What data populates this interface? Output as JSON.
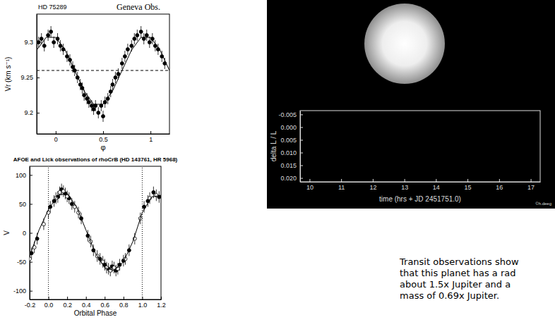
{
  "chart_data": [
    {
      "type": "scatter",
      "title": "HD 75289",
      "annotations": [
        "Geneva Obs."
      ],
      "xlabel": "φ",
      "ylabel": "Vr (km s⁻¹)",
      "xlim": [
        -0.2,
        1.2
      ],
      "ylim": [
        9.17,
        9.34
      ],
      "xticks": [
        0,
        0.5,
        1
      ],
      "yticks": [
        9.2,
        9.25,
        9.3
      ],
      "series": [
        {
          "type": "scatter",
          "marker": "filled",
          "color": "#000000",
          "x": [
            -0.18,
            -0.15,
            -0.12,
            -0.08,
            -0.05,
            -0.02,
            0.02,
            0.05,
            0.08,
            0.12,
            0.15,
            0.18,
            0.2,
            0.23,
            0.26,
            0.28,
            0.3,
            0.33,
            0.35,
            0.38,
            0.4,
            0.42,
            0.45,
            0.48,
            0.5,
            0.52,
            0.55,
            0.58,
            0.6,
            0.63,
            0.66,
            0.7,
            0.73,
            0.76,
            0.8,
            0.83,
            0.86,
            0.9,
            0.93,
            0.96,
            0.99,
            1.02,
            1.05,
            1.08,
            1.12,
            1.15
          ],
          "values": [
            9.3,
            9.305,
            9.295,
            9.31,
            9.315,
            9.3,
            9.305,
            9.295,
            9.29,
            9.28,
            9.275,
            9.265,
            9.26,
            9.25,
            9.24,
            9.235,
            9.225,
            9.22,
            9.215,
            9.21,
            9.205,
            9.21,
            9.2,
            9.21,
            9.195,
            9.215,
            9.22,
            9.23,
            9.24,
            9.25,
            9.255,
            9.27,
            9.28,
            9.29,
            9.295,
            9.305,
            9.31,
            9.315,
            9.305,
            9.31,
            9.3,
            9.305,
            9.295,
            9.29,
            9.28,
            9.27
          ],
          "errors": [
            0.008,
            0.008,
            0.008,
            0.008,
            0.008,
            0.008,
            0.008,
            0.008,
            0.008,
            0.008,
            0.008,
            0.008,
            0.008,
            0.008,
            0.008,
            0.008,
            0.008,
            0.008,
            0.008,
            0.008,
            0.008,
            0.008,
            0.008,
            0.008,
            0.008,
            0.008,
            0.008,
            0.008,
            0.008,
            0.008,
            0.008,
            0.008,
            0.008,
            0.008,
            0.008,
            0.008,
            0.008,
            0.008,
            0.008,
            0.008,
            0.008,
            0.008,
            0.008,
            0.008,
            0.008,
            0.008
          ]
        },
        {
          "type": "line",
          "color": "#000000",
          "x": [
            -0.2,
            -0.1,
            0,
            0.1,
            0.2,
            0.3,
            0.4,
            0.5,
            0.6,
            0.7,
            0.8,
            0.9,
            1,
            1.1,
            1.2
          ],
          "values": [
            9.289,
            9.307,
            9.307,
            9.289,
            9.26,
            9.231,
            9.212,
            9.212,
            9.231,
            9.26,
            9.289,
            9.307,
            9.307,
            9.289,
            9.26
          ]
        },
        {
          "type": "line",
          "line_style": "dashed",
          "color": "#000000",
          "x": [
            -0.2,
            1.2
          ],
          "values": [
            9.26,
            9.26
          ]
        }
      ]
    },
    {
      "type": "scatter",
      "title": "AFOE and Lick observations of rhoCrB (HD 143761, HR 5968)",
      "xlabel": "Orbital Phase",
      "ylabel": "V",
      "xlim": [
        -0.2,
        1.2
      ],
      "ylim": [
        -115,
        115
      ],
      "xticks": [
        -0.2,
        {
          "value": 0,
          "label": "0.0"
        },
        0.2,
        0.4,
        0.6,
        0.8,
        {
          "value": 1,
          "label": "1.0"
        },
        1.2
      ],
      "yticks": [
        -100,
        -50,
        0,
        50,
        100
      ],
      "vlines": [
        0,
        1
      ],
      "series": [
        {
          "type": "scatter",
          "marker": "filled",
          "color": "#000000",
          "x": [
            -0.18,
            -0.12,
            0.02,
            0.06,
            0.1,
            0.14,
            0.18,
            0.22,
            0.25,
            0.35,
            0.42,
            0.48,
            0.55,
            0.6,
            0.64,
            0.68,
            0.72,
            0.76,
            0.8,
            0.86,
            1.02,
            1.06,
            1.12,
            1.18
          ],
          "values": [
            -35,
            -10,
            45,
            55,
            62,
            75,
            68,
            60,
            50,
            25,
            -5,
            -30,
            -45,
            -55,
            -62,
            -58,
            -65,
            -55,
            -48,
            -30,
            45,
            55,
            70,
            62
          ],
          "errors": [
            10,
            10,
            10,
            10,
            10,
            10,
            10,
            10,
            10,
            10,
            10,
            10,
            10,
            10,
            10,
            10,
            10,
            10,
            10,
            10,
            10,
            10,
            10,
            10
          ]
        },
        {
          "type": "scatter",
          "marker": "open",
          "color": "#000000",
          "x": [
            -0.2,
            -0.15,
            -0.05,
            0,
            0.08,
            0.12,
            0.16,
            0.2,
            0.28,
            0.32,
            0.45,
            0.52,
            0.58,
            0.62,
            0.66,
            0.7,
            0.74,
            0.82,
            0.92,
            0.98,
            1.08,
            1.15
          ],
          "values": [
            -45,
            -25,
            15,
            35,
            60,
            70,
            72,
            63,
            45,
            35,
            -15,
            -40,
            -50,
            -60,
            -65,
            -60,
            -62,
            -45,
            -10,
            25,
            60,
            65
          ],
          "errors": [
            10,
            10,
            10,
            10,
            10,
            10,
            10,
            10,
            10,
            10,
            10,
            10,
            10,
            10,
            10,
            10,
            10,
            10,
            10,
            10,
            10,
            10
          ]
        },
        {
          "type": "line",
          "color": "#000000",
          "x": [
            -0.2,
            -0.1,
            0,
            0.1,
            0.2,
            0.3,
            0.4,
            0.5,
            0.6,
            0.7,
            0.8,
            0.9,
            1,
            1.1,
            1.2
          ],
          "values": [
            -40,
            5,
            40,
            65,
            68,
            45,
            5,
            -35,
            -60,
            -65,
            -50,
            -15,
            35,
            62,
            65
          ]
        }
      ]
    },
    {
      "type": "line",
      "annotations": [
        "©h.deeg"
      ],
      "xlabel": "time (hrs + JD 2451751.0)",
      "ylabel": "delta L / L",
      "xlim": [
        9.7,
        17.3
      ],
      "ylim": [
        0.0215,
        -0.0065
      ],
      "xticks": [
        10,
        11,
        12,
        13,
        14,
        15,
        16,
        17
      ],
      "yticks": [
        -0.005,
        {
          "value": 0,
          "label": "0.000"
        },
        0.005,
        {
          "value": 0.01,
          "label": "0.010"
        },
        0.015,
        {
          "value": 0.02,
          "label": "0.020"
        }
      ]
    }
  ],
  "text": {
    "lines": [
      "Transit observations show",
      "that this planet has a rad",
      "about 1.5x Jupiter and a",
      "mass of 0.69x Jupiter."
    ]
  }
}
